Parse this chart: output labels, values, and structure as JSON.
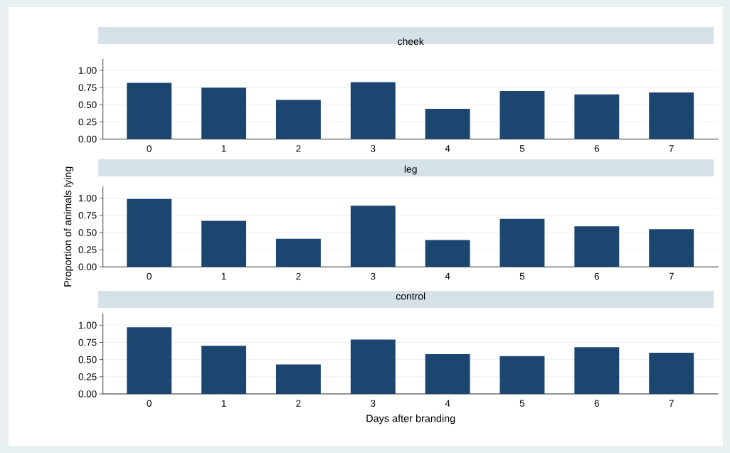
{
  "chart_data": [
    {
      "type": "bar",
      "title": "cheek",
      "categories": [
        "0",
        "1",
        "2",
        "3",
        "4",
        "5",
        "6",
        "7"
      ],
      "values": [
        0.82,
        0.75,
        0.57,
        0.83,
        0.44,
        0.7,
        0.65,
        0.68
      ],
      "color": "#1c4670",
      "ylim": [
        0,
        1.17
      ],
      "yticks": [
        {
          "value": 0,
          "label": "0.00"
        },
        {
          "value": 0.25,
          "label": "0.25"
        },
        {
          "value": 0.5,
          "label": "0.50"
        },
        {
          "value": 0.75,
          "label": "0.75"
        },
        {
          "value": 1,
          "label": "1.00"
        }
      ],
      "grid": "y"
    },
    {
      "type": "bar",
      "title": "leg",
      "ylabel": "Proportion of animals lying",
      "categories": [
        "0",
        "1",
        "2",
        "3",
        "4",
        "5",
        "6",
        "7"
      ],
      "values": [
        0.99,
        0.67,
        0.41,
        0.89,
        0.39,
        0.7,
        0.59,
        0.55
      ],
      "color": "#1c4670",
      "ylim": [
        0,
        1.17
      ],
      "yticks": [
        {
          "value": 0,
          "label": "0.00"
        },
        {
          "value": 0.25,
          "label": "0.25"
        },
        {
          "value": 0.5,
          "label": "0.50"
        },
        {
          "value": 0.75,
          "label": "0.75"
        },
        {
          "value": 1,
          "label": "1.00"
        }
      ],
      "grid": "y"
    },
    {
      "type": "bar",
      "title": "control",
      "xlabel": "Days after branding",
      "categories": [
        "0",
        "1",
        "2",
        "3",
        "4",
        "5",
        "6",
        "7"
      ],
      "values": [
        0.97,
        0.7,
        0.43,
        0.79,
        0.58,
        0.55,
        0.68,
        0.6
      ],
      "color": "#1c4670",
      "ylim": [
        0,
        1.17
      ],
      "yticks": [
        {
          "value": 0,
          "label": "0.00"
        },
        {
          "value": 0.25,
          "label": "0.25"
        },
        {
          "value": 0.5,
          "label": "0.50"
        },
        {
          "value": 0.75,
          "label": "0.75"
        },
        {
          "value": 1,
          "label": "1.00"
        }
      ],
      "grid": "y"
    }
  ]
}
